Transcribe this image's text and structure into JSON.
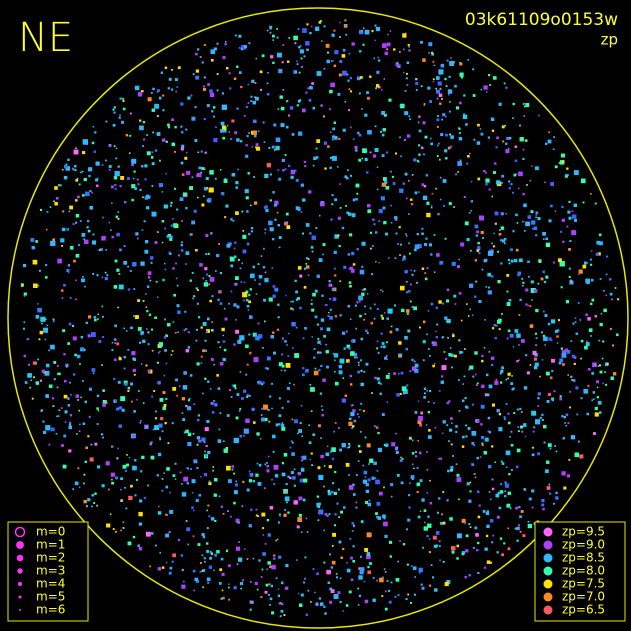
{
  "direction": "NE",
  "frame_id": "03k61109o0153w",
  "metric": "zp",
  "magnitude_legend": [
    "m=0",
    "m=1",
    "m=2",
    "m=3",
    "m=4",
    "m=5",
    "m=6"
  ],
  "zp_legend": [
    {
      "label": "zp=9.5",
      "color": "#ff66ff"
    },
    {
      "label": "zp=9.0",
      "color": "#b040ff"
    },
    {
      "label": "zp=8.5",
      "color": "#30b8ff"
    },
    {
      "label": "zp=8.0",
      "color": "#30ffb0"
    },
    {
      "label": "zp=7.5",
      "color": "#ffe000"
    },
    {
      "label": "zp=7.0",
      "color": "#ff8a20"
    },
    {
      "label": "zp=6.5",
      "color": "#ff5a60"
    }
  ]
}
